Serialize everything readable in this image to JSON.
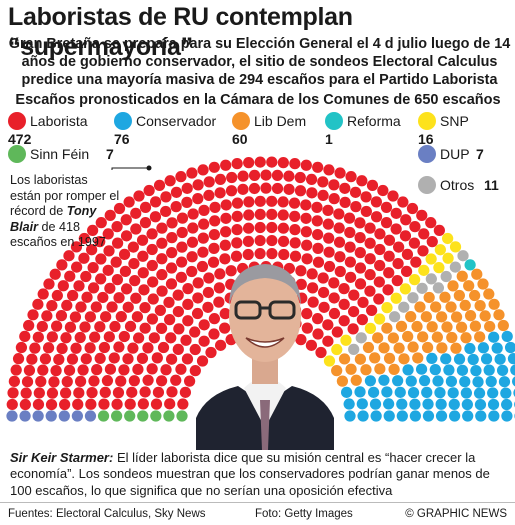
{
  "header": {
    "title": "Laboristas de RU contemplan “supermayoría”",
    "subtitle": "Gran Bretaña se prepara para su Elección General el 4 d julio luego de 14 años de gobierno conservador, el sitio de sondeos Electoral Calculus predice una mayoría masiva de 294 escaños para el Partido Laborista"
  },
  "chart_data": {
    "type": "parliament",
    "title": "Escaños pronosticados en la Cámara de los Comunes de 650 escaños",
    "total_seats": 650,
    "legend_placement": "top",
    "series": [
      {
        "name": "Laborista",
        "value": 472,
        "color": "#e8202a"
      },
      {
        "name": "Conservador",
        "value": 76,
        "color": "#1ea7e1"
      },
      {
        "name": "Lib Dem",
        "value": 60,
        "color": "#f5922b"
      },
      {
        "name": "Reforma",
        "value": 1,
        "color": "#22c3c6"
      },
      {
        "name": "SNP",
        "value": 16,
        "color": "#fde21c"
      },
      {
        "name": "Sinn Féin",
        "value": 7,
        "color": "#5fb85a"
      },
      {
        "name": "DUP",
        "value": 7,
        "color": "#6a7fc3"
      },
      {
        "name": "Otros",
        "value": 11,
        "color": "#b0b0b0"
      }
    ],
    "arc_order": [
      "Sinn Féin",
      "DUP",
      "Laborista",
      "SNP",
      "Otros",
      "Reforma",
      "Lib Dem",
      "Conservador"
    ]
  },
  "annotation": {
    "line1": "Los laboristas están por romper el récord de",
    "name": "Tony Blair",
    "line2": "de 418 escaños en 1997"
  },
  "caption": {
    "name": "Sir Keir Starmer:",
    "text": "El líder laborista dice que su misión central es “hacer crecer la economía”. Los sondeos muestran que los conservadores podrían ganar menos de 100 escaños, lo que significa que no serían una oposición efectiva"
  },
  "footer": {
    "sources": "Fuentes: Electoral Calculus, Sky News",
    "photo_credit": "Foto: Getty Images",
    "brand": "© GRAPHIC NEWS"
  }
}
